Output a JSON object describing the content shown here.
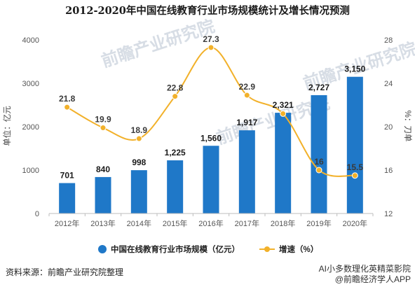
{
  "chart_data": {
    "type": "bar",
    "title": "2012-2020年中国在线教育行业市场规模统计及增长情况预测",
    "categories": [
      "2012年",
      "2013年",
      "2014年",
      "2015年",
      "2016年",
      "2017年",
      "2018年",
      "2019年",
      "2020年"
    ],
    "series": [
      {
        "name": "中国在线教育行业市场规模（亿元）",
        "type": "bar",
        "axis": "left",
        "values": [
          701,
          840,
          998,
          1225,
          1560,
          1917,
          2321,
          2727,
          3150
        ],
        "labels": [
          "701",
          "840",
          "998",
          "1,225",
          "1,560",
          "1,917",
          "2,321",
          "2,727",
          "3,150"
        ],
        "color": "#1f78c8"
      },
      {
        "name": "增速（%）",
        "type": "line",
        "axis": "right",
        "values": [
          21.8,
          19.9,
          18.9,
          22.8,
          27.3,
          22.9,
          21.2,
          16,
          15.5
        ],
        "labels": [
          "21.8",
          "19.9",
          "18.9",
          "22.8",
          "27.3",
          "22.9",
          "",
          "16",
          "15.5"
        ],
        "color": "#f2b12a"
      }
    ],
    "ylabel": "单位：亿元",
    "y2label": "%：刀单",
    "ylim": [
      0,
      4000
    ],
    "yticks": [
      "0",
      "1000",
      "2000",
      "3000",
      "4000"
    ],
    "y2lim": [
      12,
      28
    ],
    "y2ticks": [
      "12",
      "16",
      "20",
      "24",
      "28"
    ],
    "grid": false,
    "legend_position": "bottom"
  },
  "footer": {
    "source": "资料来源：前瞻产业研究院整理",
    "brand": "AI小多数理化英精菜影院",
    "brand2": "@前瞻经济学人APP"
  },
  "watermark": {
    "text": "前瞻产业研究院"
  }
}
